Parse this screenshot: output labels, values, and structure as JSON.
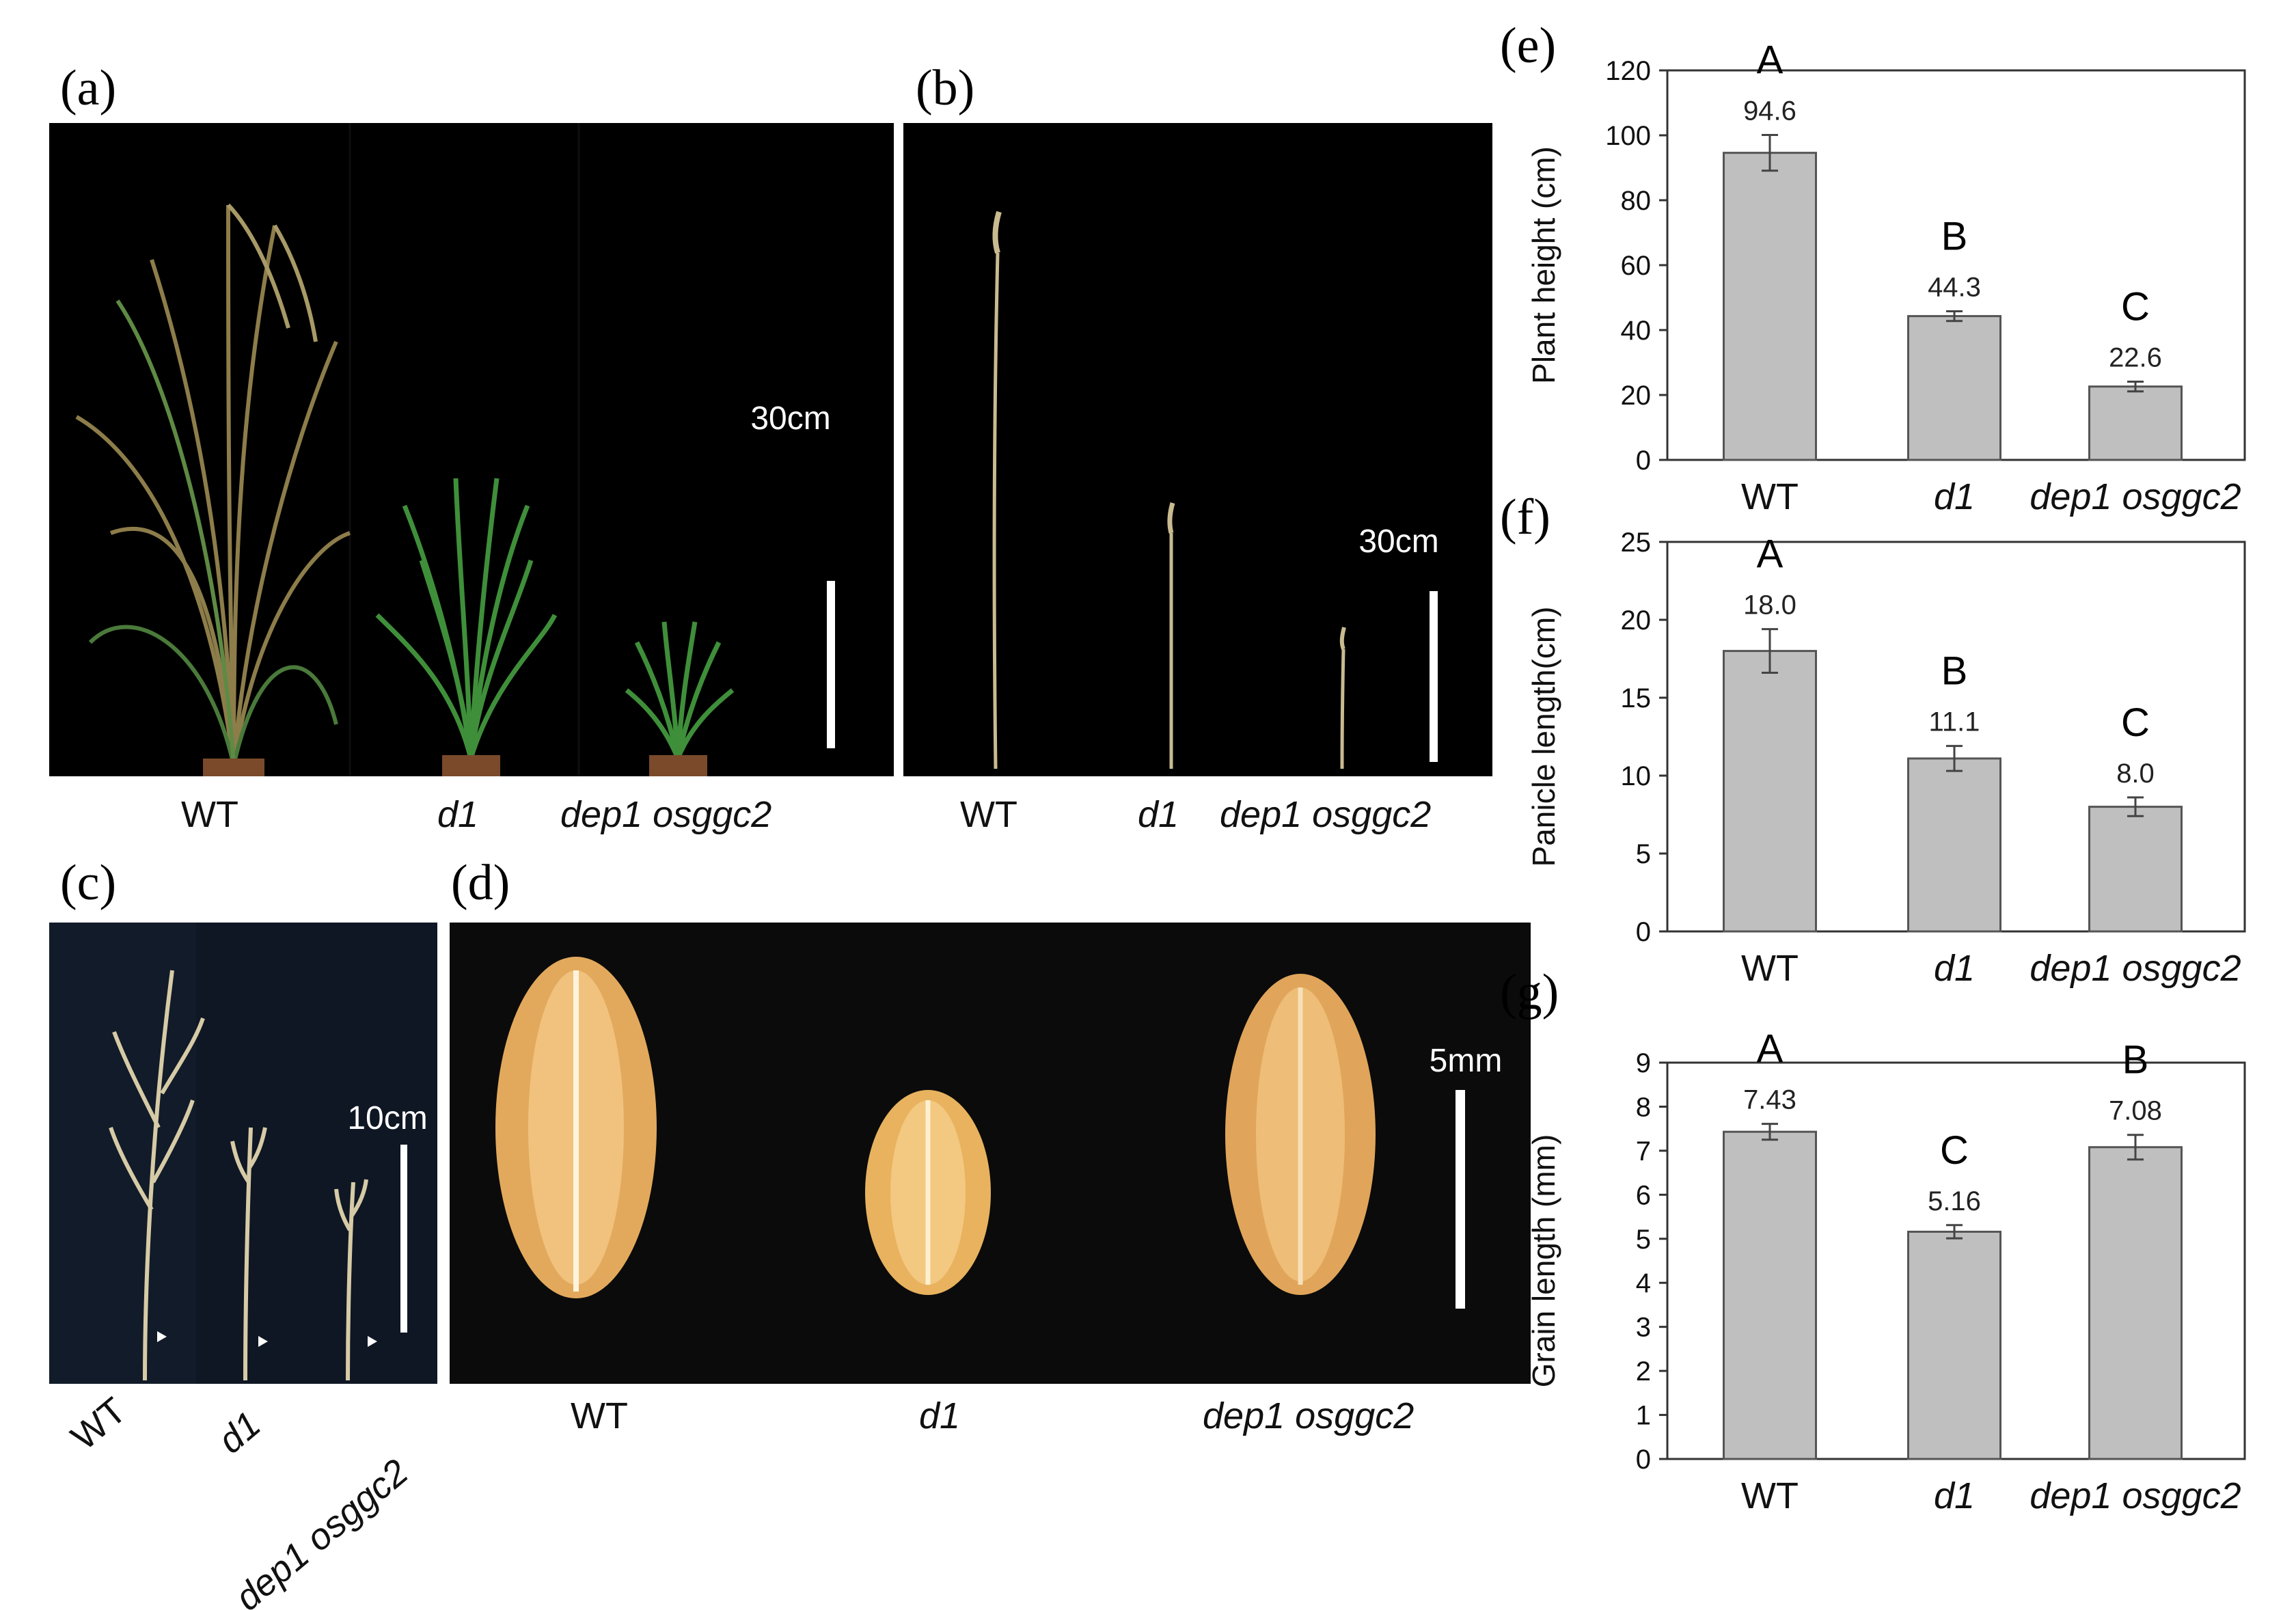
{
  "figure": {
    "photo_panels": [
      {
        "id": "a",
        "label": "(a)",
        "scale_bar": "30cm",
        "captions": [
          "WT",
          "d1",
          "dep1 osggc2"
        ]
      },
      {
        "id": "b",
        "label": "(b)",
        "scale_bar": "30cm",
        "captions": [
          "WT",
          "d1",
          "dep1 osggc2"
        ]
      },
      {
        "id": "c",
        "label": "(c)",
        "scale_bar": "10cm",
        "captions": [
          "WT",
          "d1",
          "dep1 osggc2"
        ]
      },
      {
        "id": "d",
        "label": "(d)",
        "scale_bar": "5mm",
        "captions": [
          "WT",
          "d1",
          "dep1 osggc2"
        ]
      }
    ]
  },
  "chart_data": [
    {
      "panel": "(e)",
      "type": "bar",
      "categories": [
        "WT",
        "d1",
        "dep1 osggc2"
      ],
      "values": [
        94.6,
        44.3,
        22.6
      ],
      "errors": [
        5.5,
        1.5,
        1.5
      ],
      "value_labels": [
        "94.6",
        "44.3",
        "22.6"
      ],
      "significance": [
        "A",
        "B",
        "C"
      ],
      "ylabel": "Plant height  (cm)",
      "ylim": [
        0,
        120
      ],
      "yticks": [
        0,
        20,
        40,
        60,
        80,
        100,
        120
      ],
      "grid": false,
      "bar_color": "#bfbfbf"
    },
    {
      "panel": "(f)",
      "type": "bar",
      "categories": [
        "WT",
        "d1",
        "dep1 osggc2"
      ],
      "values": [
        18.0,
        11.1,
        8.0
      ],
      "errors": [
        1.4,
        0.8,
        0.6
      ],
      "value_labels": [
        "18.0",
        "11.1",
        "8.0"
      ],
      "significance": [
        "A",
        "B",
        "C"
      ],
      "ylabel": "Panicle length(cm)",
      "ylim": [
        0,
        25
      ],
      "yticks": [
        0,
        5,
        10,
        15,
        20,
        25
      ],
      "grid": false,
      "bar_color": "#bfbfbf"
    },
    {
      "panel": "(g)",
      "type": "bar",
      "categories": [
        "WT",
        "d1",
        "dep1 osggc2"
      ],
      "values": [
        7.43,
        5.16,
        7.08
      ],
      "errors": [
        0.18,
        0.15,
        0.28
      ],
      "value_labels": [
        "7.43",
        "5.16",
        "7.08"
      ],
      "significance": [
        "A",
        "C",
        "B"
      ],
      "ylabel": "Grain length (mm)",
      "ylim": [
        0,
        9
      ],
      "yticks": [
        0,
        1,
        2,
        3,
        4,
        5,
        6,
        7,
        8,
        9
      ],
      "grid": false,
      "bar_color": "#bfbfbf"
    }
  ],
  "colors": {
    "photo_background": "#000000",
    "bar_fill": "#bfbfbf",
    "bar_stroke": "#555555",
    "wt_plant": "#8a7a4a",
    "green_leaf": "#3f8f3a",
    "grain": "#e0a85a",
    "panicle": "#d8cfb0",
    "pot": "#7a4a2a"
  }
}
